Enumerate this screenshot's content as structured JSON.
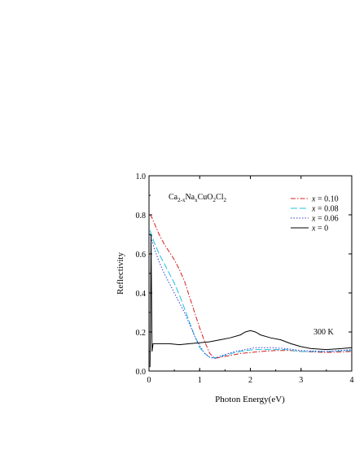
{
  "chart_data": {
    "type": "line",
    "title": "",
    "xlabel": "Photon Energy(eV)",
    "ylabel": "Reflectivity",
    "xlim": [
      0,
      4
    ],
    "ylim": [
      0,
      1.0
    ],
    "x_ticks": [
      "0",
      "1",
      "2",
      "3",
      "4"
    ],
    "y_ticks": [
      "0.0",
      "0.2",
      "0.4",
      "0.6",
      "0.8",
      "1.0"
    ],
    "compound_label": {
      "base": "Ca",
      "sub1": "2-x",
      "mid": "Na",
      "sub2": "x",
      "mid2": "CuO",
      "sub3": "2",
      "tail": "Cl",
      "sub4": "2"
    },
    "temperature_label": "300 K",
    "legend_position": "top-right",
    "grid": false,
    "series": [
      {
        "legend_var": "x",
        "legend_value": "= 0.10",
        "color": "#d62020",
        "dash": "6,2,1.5,2",
        "points": [
          [
            0.02,
            0.8
          ],
          [
            0.05,
            0.79
          ],
          [
            0.1,
            0.76
          ],
          [
            0.2,
            0.7
          ],
          [
            0.3,
            0.65
          ],
          [
            0.4,
            0.61
          ],
          [
            0.5,
            0.57
          ],
          [
            0.6,
            0.52
          ],
          [
            0.7,
            0.46
          ],
          [
            0.8,
            0.38
          ],
          [
            0.9,
            0.3
          ],
          [
            1.0,
            0.22
          ],
          [
            1.1,
            0.15
          ],
          [
            1.2,
            0.09
          ],
          [
            1.3,
            0.065
          ],
          [
            1.4,
            0.07
          ],
          [
            1.6,
            0.08
          ],
          [
            1.8,
            0.09
          ],
          [
            2.0,
            0.095
          ],
          [
            2.2,
            0.1
          ],
          [
            2.5,
            0.105
          ],
          [
            2.8,
            0.105
          ],
          [
            3.0,
            0.1
          ],
          [
            3.5,
            0.095
          ],
          [
            4.0,
            0.1
          ]
        ]
      },
      {
        "legend_var": "x",
        "legend_value": "= 0.08",
        "color": "#20c0e0",
        "dash": "8,3",
        "points": [
          [
            0.02,
            0.72
          ],
          [
            0.05,
            0.7
          ],
          [
            0.1,
            0.66
          ],
          [
            0.2,
            0.6
          ],
          [
            0.3,
            0.55
          ],
          [
            0.4,
            0.5
          ],
          [
            0.5,
            0.45
          ],
          [
            0.6,
            0.39
          ],
          [
            0.7,
            0.32
          ],
          [
            0.8,
            0.25
          ],
          [
            0.9,
            0.18
          ],
          [
            1.0,
            0.12
          ],
          [
            1.1,
            0.09
          ],
          [
            1.2,
            0.07
          ],
          [
            1.3,
            0.068
          ],
          [
            1.5,
            0.08
          ],
          [
            1.7,
            0.095
          ],
          [
            1.9,
            0.105
          ],
          [
            2.1,
            0.11
          ],
          [
            2.4,
            0.11
          ],
          [
            2.7,
            0.11
          ],
          [
            3.0,
            0.1
          ],
          [
            3.5,
            0.1
          ],
          [
            4.0,
            0.105
          ]
        ]
      },
      {
        "legend_var": "x",
        "legend_value": "= 0.06",
        "color": "#3a3ad8",
        "dash": "1.5,2",
        "points": [
          [
            0.02,
            0.7
          ],
          [
            0.05,
            0.68
          ],
          [
            0.1,
            0.63
          ],
          [
            0.2,
            0.56
          ],
          [
            0.3,
            0.5
          ],
          [
            0.4,
            0.45
          ],
          [
            0.5,
            0.4
          ],
          [
            0.6,
            0.35
          ],
          [
            0.7,
            0.3
          ],
          [
            0.8,
            0.24
          ],
          [
            0.9,
            0.18
          ],
          [
            1.0,
            0.13
          ],
          [
            1.1,
            0.09
          ],
          [
            1.2,
            0.07
          ],
          [
            1.3,
            0.065
          ],
          [
            1.5,
            0.085
          ],
          [
            1.7,
            0.1
          ],
          [
            1.9,
            0.11
          ],
          [
            2.1,
            0.12
          ],
          [
            2.4,
            0.12
          ],
          [
            2.7,
            0.115
          ],
          [
            3.0,
            0.105
          ],
          [
            3.5,
            0.1
          ],
          [
            4.0,
            0.11
          ]
        ]
      },
      {
        "legend_var": "x",
        "legend_value": "= 0",
        "color": "#000000",
        "dash": "",
        "points": [
          [
            0.02,
            0.02
          ],
          [
            0.03,
            0.3
          ],
          [
            0.04,
            0.7
          ],
          [
            0.05,
            0.4
          ],
          [
            0.06,
            0.1
          ],
          [
            0.08,
            0.14
          ],
          [
            0.2,
            0.14
          ],
          [
            0.4,
            0.14
          ],
          [
            0.6,
            0.135
          ],
          [
            0.8,
            0.14
          ],
          [
            1.0,
            0.145
          ],
          [
            1.2,
            0.15
          ],
          [
            1.4,
            0.16
          ],
          [
            1.6,
            0.17
          ],
          [
            1.8,
            0.185
          ],
          [
            1.9,
            0.2
          ],
          [
            2.0,
            0.207
          ],
          [
            2.1,
            0.2
          ],
          [
            2.2,
            0.185
          ],
          [
            2.4,
            0.17
          ],
          [
            2.6,
            0.16
          ],
          [
            2.8,
            0.14
          ],
          [
            3.0,
            0.125
          ],
          [
            3.2,
            0.115
          ],
          [
            3.5,
            0.11
          ],
          [
            3.8,
            0.115
          ],
          [
            4.0,
            0.12
          ]
        ]
      }
    ]
  }
}
